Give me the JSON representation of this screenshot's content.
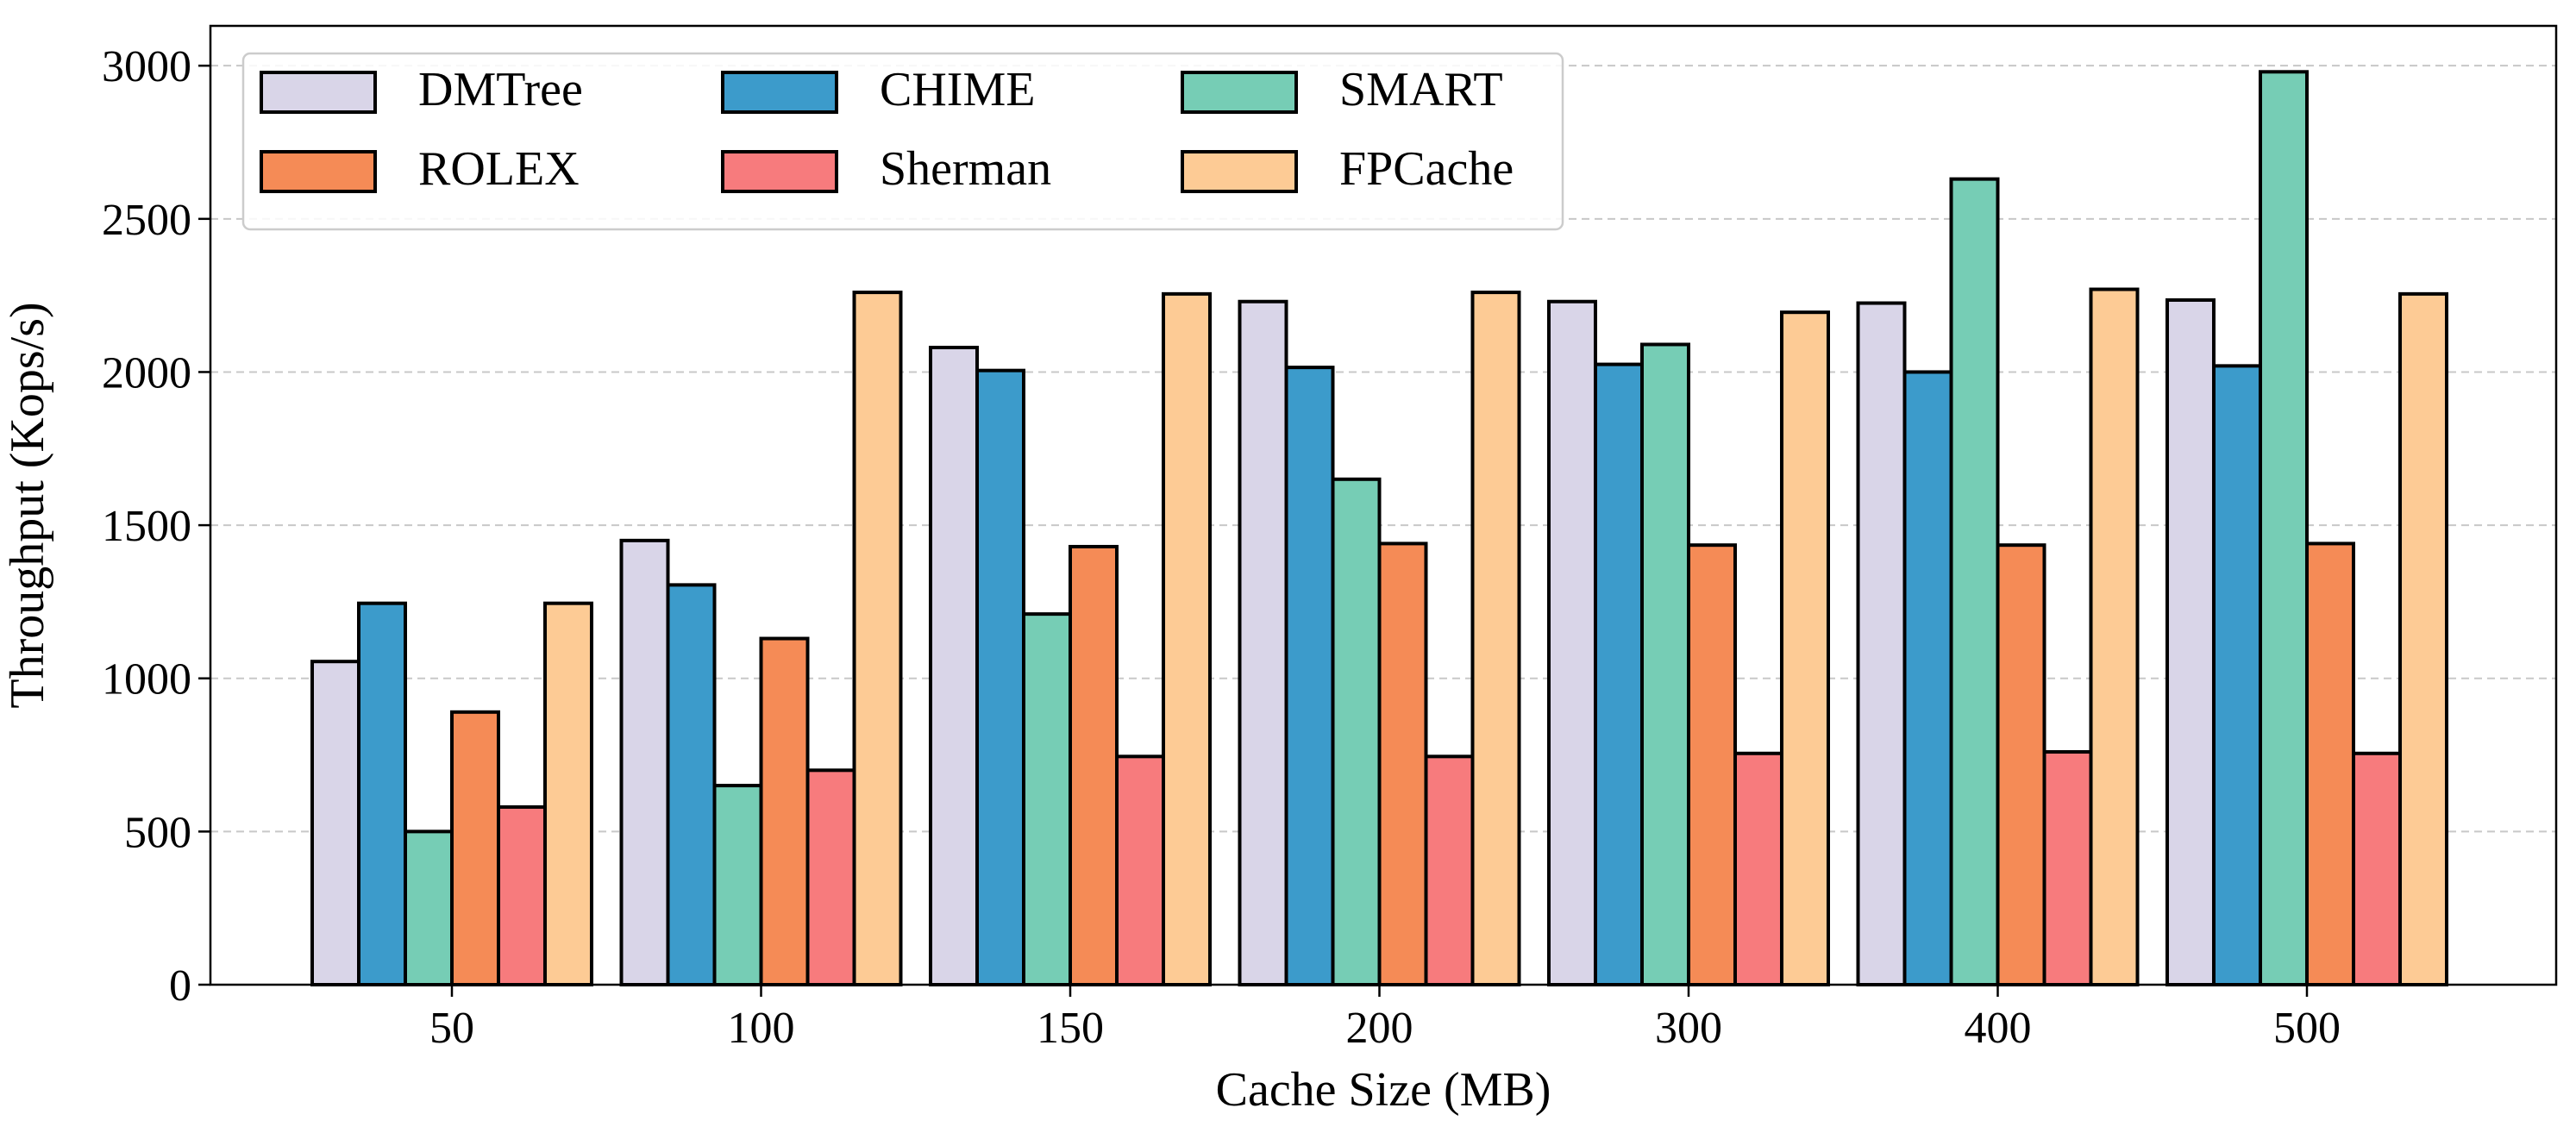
{
  "chart_data": {
    "type": "bar",
    "xlabel": "Cache Size (MB)",
    "ylabel": "Throughput (Kops/s)",
    "categories": [
      "50",
      "100",
      "150",
      "200",
      "300",
      "400",
      "500"
    ],
    "ylim": [
      0,
      3130
    ],
    "yticks": [
      0,
      500,
      1000,
      1500,
      2000,
      2500,
      3000
    ],
    "grid": "horizontal dashed",
    "legend": {
      "placement": "top-left",
      "columns": 3
    },
    "series": [
      {
        "name": "DMTree",
        "color": "#d9d5e8",
        "values": [
          1055,
          1450,
          2080,
          2230,
          2230,
          2225,
          2235
        ]
      },
      {
        "name": "CHIME",
        "color": "#3c9bcb",
        "values": [
          1245,
          1305,
          2005,
          2015,
          2025,
          2000,
          2020
        ]
      },
      {
        "name": "SMART",
        "color": "#76cdb5",
        "values": [
          500,
          650,
          1210,
          1650,
          2090,
          2630,
          2980
        ]
      },
      {
        "name": "ROLEX",
        "color": "#f58b56",
        "values": [
          890,
          1130,
          1430,
          1440,
          1435,
          1435,
          1440
        ]
      },
      {
        "name": "Sherman",
        "color": "#f77b7d",
        "values": [
          580,
          700,
          745,
          745,
          755,
          760,
          755
        ]
      },
      {
        "name": "FPCache",
        "color": "#fdcb95",
        "values": [
          1245,
          2260,
          2255,
          2260,
          2195,
          2270,
          2255
        ]
      }
    ]
  }
}
